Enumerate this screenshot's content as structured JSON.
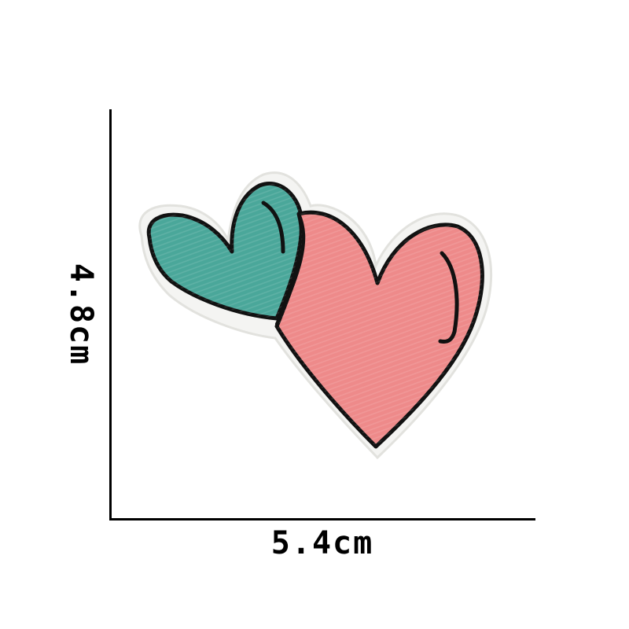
{
  "dimensions": {
    "width_label": "5.4cm",
    "height_label": "4.8cm"
  },
  "patch": {
    "description_icon": "embroidered-double-heart-icon",
    "colors": {
      "teal_heart": "#4aa79a",
      "pink_heart": "#ee8a8a",
      "outline": "#111111",
      "border": "#f4f4f2"
    }
  }
}
